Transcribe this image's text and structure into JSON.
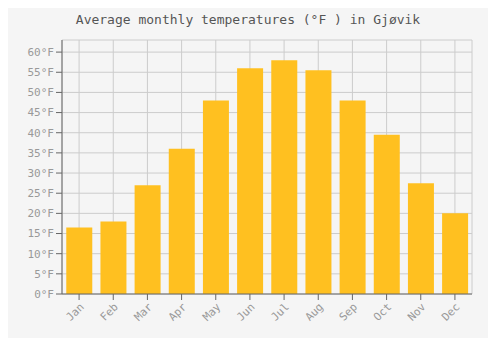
{
  "chart_data": {
    "type": "bar",
    "title": "Average monthly temperatures (°F ) in Gjøvik",
    "categories": [
      "Jan",
      "Feb",
      "Mar",
      "Apr",
      "May",
      "Jun",
      "Jul",
      "Aug",
      "Sep",
      "Oct",
      "Nov",
      "Dec"
    ],
    "values": [
      16.5,
      18.0,
      27.0,
      36.0,
      48.0,
      56.0,
      58.0,
      55.5,
      48.0,
      39.5,
      27.5,
      20.0
    ],
    "color": "#FFC020",
    "ylim": [
      0,
      63
    ],
    "yticks": [
      {
        "value": 0,
        "label": "0°F"
      },
      {
        "value": 5,
        "label": "5°F"
      },
      {
        "value": 10,
        "label": "10°F"
      },
      {
        "value": 15,
        "label": "15°F"
      },
      {
        "value": 20,
        "label": "20°F"
      },
      {
        "value": 25,
        "label": "25°F"
      },
      {
        "value": 30,
        "label": "30°F"
      },
      {
        "value": 35,
        "label": "35°F"
      },
      {
        "value": 40,
        "label": "40°F"
      },
      {
        "value": 45,
        "label": "45°F"
      },
      {
        "value": 50,
        "label": "50°F"
      },
      {
        "value": 55,
        "label": "55°F"
      },
      {
        "value": 60,
        "label": "60°F"
      }
    ],
    "grid": true
  }
}
